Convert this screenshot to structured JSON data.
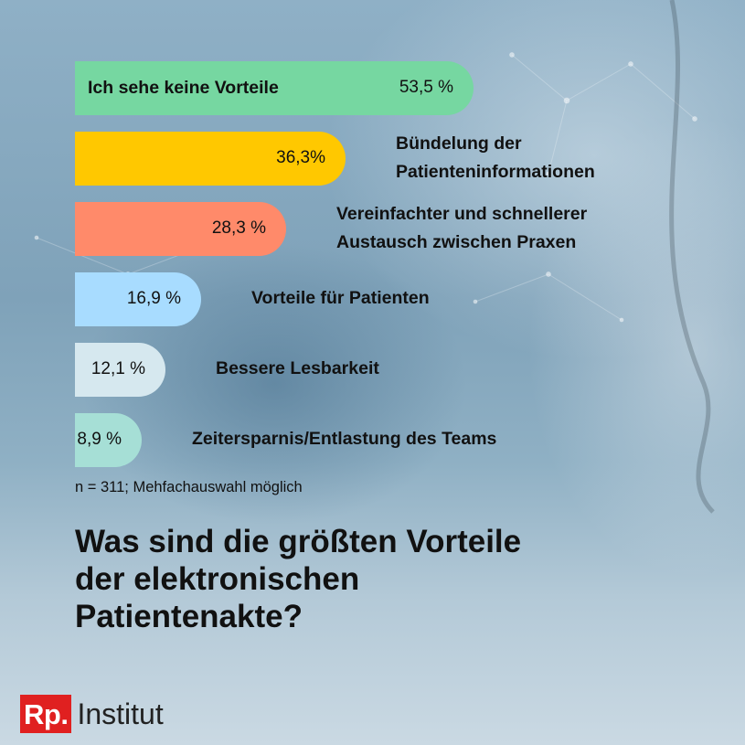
{
  "chart_data": {
    "type": "bar",
    "orientation": "horizontal",
    "categories": [
      "Ich sehe keine Vorteile",
      "Bündelung der\nPatienteninformationen",
      "Vereinfachter und schnellerer\nAustausch zwischen Praxen",
      "Vorteile für Patienten",
      "Bessere Lesbarkeit",
      "Zeitersparnis/Entlastung des Teams"
    ],
    "values": [
      53.5,
      36.3,
      28.3,
      16.9,
      12.1,
      8.9
    ],
    "value_labels": [
      "53,5 %",
      "36,3%",
      "28,3 %",
      "16,9 %",
      "12,1 %",
      "8,9 %"
    ],
    "colors": [
      "#76d7a1",
      "#ffc800",
      "#ff8a6a",
      "#a8dcff",
      "#d6e8ef",
      "#a6dfd6"
    ],
    "title": "Was sind die größten Vorteile\nder elektronischen\nPatientenakte?",
    "note": "n = 311; Mehfachauswahl möglich",
    "xlabel": "",
    "ylabel": "",
    "grid": false,
    "legend": "none"
  },
  "brand": {
    "mark": "Rp.",
    "name": "Institut",
    "color": "#e02020"
  }
}
